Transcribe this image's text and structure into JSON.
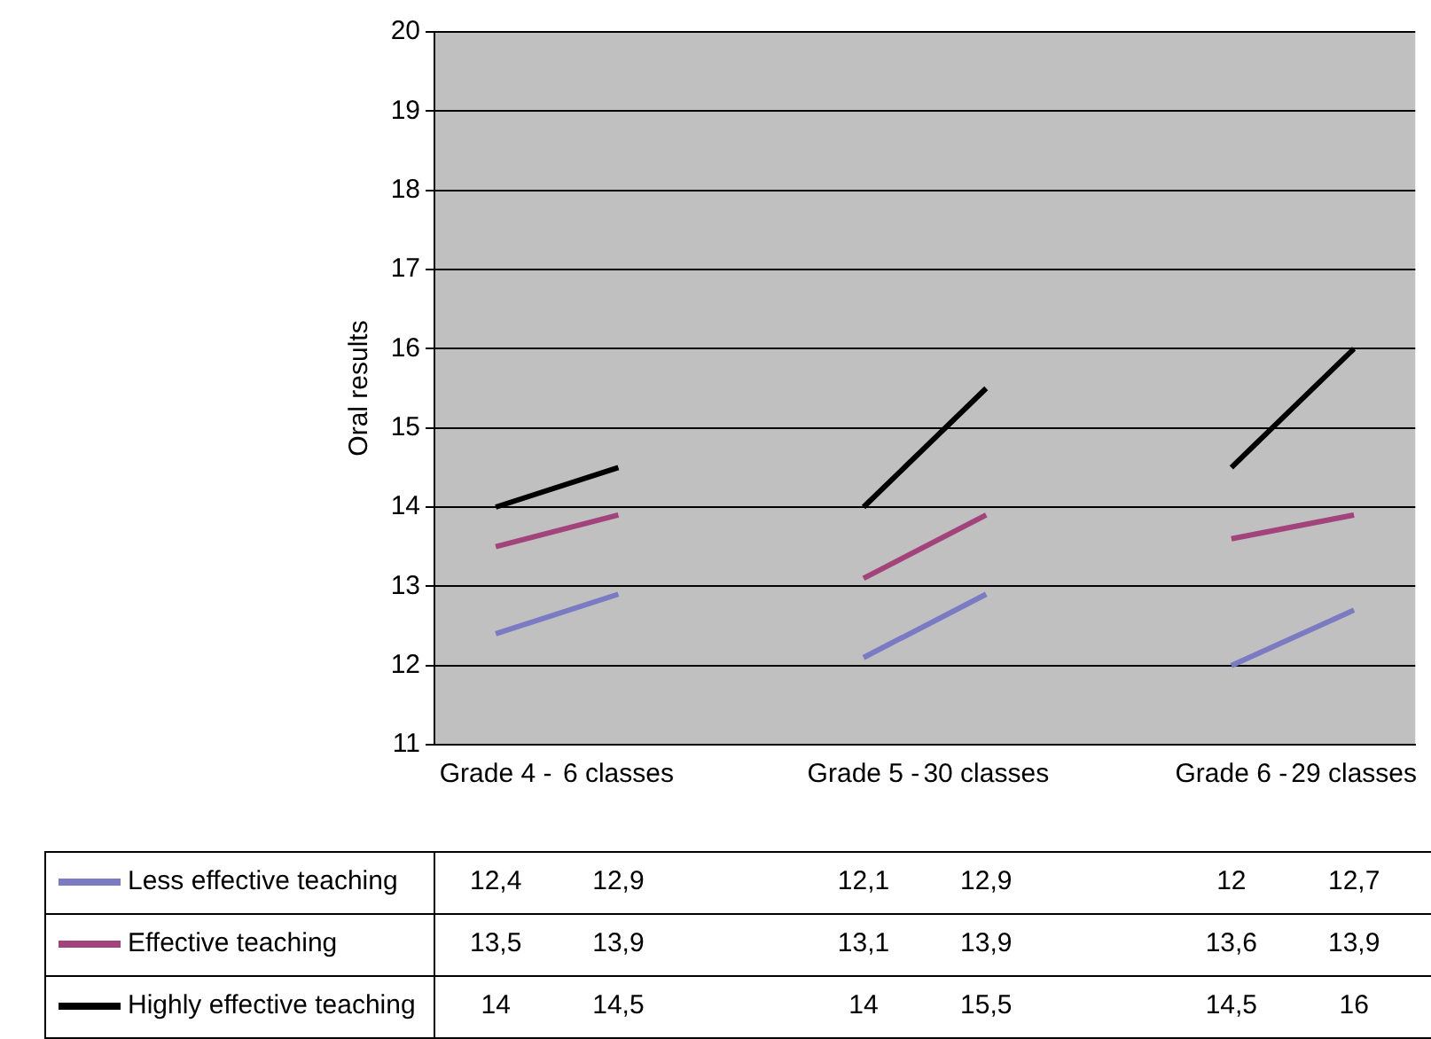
{
  "chart_data": {
    "type": "line",
    "ylabel": "Oral results",
    "categories": [
      "Grade 4 -",
      "6 classes",
      null,
      "Grade 5 -",
      "30 classes",
      null,
      "Grade 6 -",
      "29 classes"
    ],
    "series": [
      {
        "name": "Less effective teaching",
        "color": "#7b7bc4",
        "values": [
          12.4,
          12.9,
          null,
          12.1,
          12.9,
          null,
          12,
          12.7
        ],
        "value_labels": [
          "12,4",
          "12,9",
          null,
          "12,1",
          "12,9",
          null,
          "12",
          "12,7"
        ]
      },
      {
        "name": "Effective teaching",
        "color": "#a3437c",
        "values": [
          13.5,
          13.9,
          null,
          13.1,
          13.9,
          null,
          13.6,
          13.9
        ],
        "value_labels": [
          "13,5",
          "13,9",
          null,
          "13,1",
          "13,9",
          null,
          "13,6",
          "13,9"
        ]
      },
      {
        "name": "Highly effective teaching",
        "color": "#000000",
        "values": [
          14,
          14.5,
          null,
          14,
          15.5,
          null,
          14.5,
          16
        ],
        "value_labels": [
          "14",
          "14,5",
          null,
          "14",
          "15,5",
          null,
          "14,5",
          "16"
        ]
      }
    ],
    "ylim": [
      11,
      20
    ],
    "yticks": [
      11,
      12,
      13,
      14,
      15,
      16,
      17,
      18,
      19,
      20
    ],
    "grid": "y",
    "legend": "bottom",
    "marker": "none",
    "line_style": "solid"
  }
}
